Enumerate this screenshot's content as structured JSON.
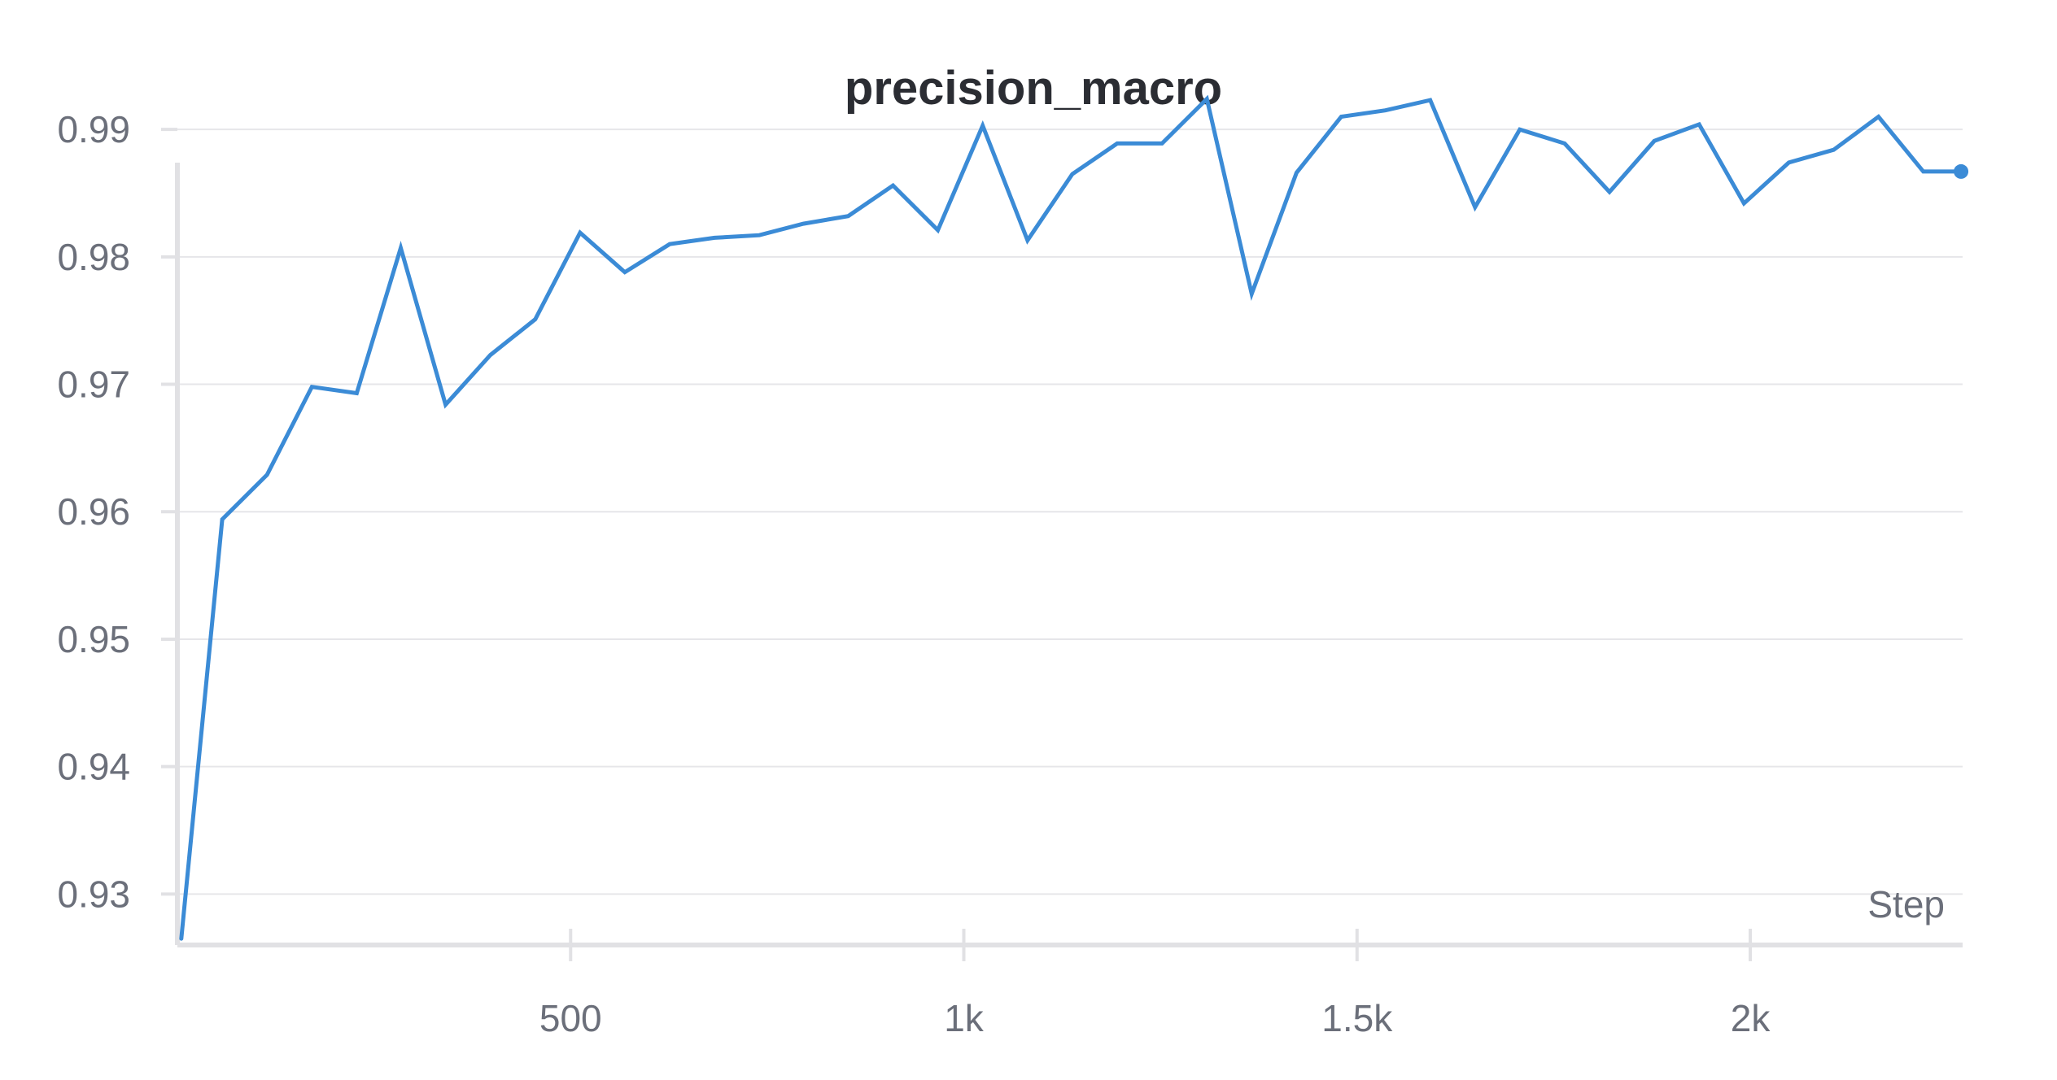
{
  "chart_data": {
    "type": "line",
    "title": "precision_macro",
    "xlabel": "Step",
    "ylabel": "",
    "xlim": [
      0,
      2270
    ],
    "ylim": [
      0.926,
      0.9925
    ],
    "x_ticks": [
      {
        "value": 500,
        "label": "500"
      },
      {
        "value": 1000,
        "label": "1k"
      },
      {
        "value": 1500,
        "label": "1.5k"
      },
      {
        "value": 2000,
        "label": "2k"
      }
    ],
    "y_ticks": [
      {
        "value": 0.93,
        "label": "0.93"
      },
      {
        "value": 0.94,
        "label": "0.94"
      },
      {
        "value": 0.95,
        "label": "0.95"
      },
      {
        "value": 0.96,
        "label": "0.96"
      },
      {
        "value": 0.97,
        "label": "0.97"
      },
      {
        "value": 0.98,
        "label": "0.98"
      },
      {
        "value": 0.99,
        "label": "0.99"
      }
    ],
    "grid": true,
    "legend": "none",
    "series": [
      {
        "color": "#3b8bd6",
        "x": [
          5,
          57,
          114,
          171,
          228,
          284,
          341,
          398,
          455,
          512,
          569,
          626,
          683,
          740,
          796,
          853,
          910,
          967,
          1024,
          1081,
          1138,
          1195,
          1252,
          1309,
          1366,
          1423,
          1480,
          1536,
          1593,
          1650,
          1707,
          1764,
          1821,
          1878,
          1935,
          1992,
          2049,
          2106,
          2163,
          2220,
          2268
        ],
        "y": [
          0.9265,
          0.9594,
          0.9629,
          0.9698,
          0.9693,
          0.9807,
          0.9684,
          0.9723,
          0.9751,
          0.9819,
          0.9788,
          0.981,
          0.9815,
          0.9817,
          0.9826,
          0.9832,
          0.9856,
          0.9821,
          0.9903,
          0.9813,
          0.9865,
          0.9889,
          0.9889,
          0.9924,
          0.9771,
          0.9866,
          0.991,
          0.9915,
          0.9923,
          0.9839,
          0.99,
          0.9889,
          0.9851,
          0.9891,
          0.9904,
          0.9842,
          0.9874,
          0.9884,
          0.991,
          0.9867,
          0.9867
        ]
      }
    ]
  }
}
